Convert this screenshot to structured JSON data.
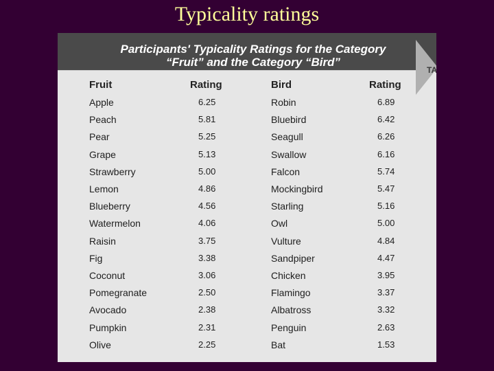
{
  "slide": {
    "title": "Typicality ratings"
  },
  "table": {
    "title_line1": "Participants' Typicality Ratings for the Category",
    "title_line2": "“Fruit” and the Category “Bird”",
    "tab_text": "TA",
    "headers": {
      "fruit": "Fruit",
      "fruit_rating": "Rating",
      "bird": "Bird",
      "bird_rating": "Rating"
    },
    "rows": [
      {
        "fruit": "Apple",
        "fruit_rating": "6.25",
        "bird": "Robin",
        "bird_rating": "6.89"
      },
      {
        "fruit": "Peach",
        "fruit_rating": "5.81",
        "bird": "Bluebird",
        "bird_rating": "6.42"
      },
      {
        "fruit": "Pear",
        "fruit_rating": "5.25",
        "bird": "Seagull",
        "bird_rating": "6.26"
      },
      {
        "fruit": "Grape",
        "fruit_rating": "5.13",
        "bird": "Swallow",
        "bird_rating": "6.16"
      },
      {
        "fruit": "Strawberry",
        "fruit_rating": "5.00",
        "bird": "Falcon",
        "bird_rating": "5.74"
      },
      {
        "fruit": "Lemon",
        "fruit_rating": "4.86",
        "bird": "Mockingbird",
        "bird_rating": "5.47"
      },
      {
        "fruit": "Blueberry",
        "fruit_rating": "4.56",
        "bird": "Starling",
        "bird_rating": "5.16"
      },
      {
        "fruit": "Watermelon",
        "fruit_rating": "4.06",
        "bird": "Owl",
        "bird_rating": "5.00"
      },
      {
        "fruit": "Raisin",
        "fruit_rating": "3.75",
        "bird": "Vulture",
        "bird_rating": "4.84"
      },
      {
        "fruit": "Fig",
        "fruit_rating": "3.38",
        "bird": "Sandpiper",
        "bird_rating": "4.47"
      },
      {
        "fruit": "Coconut",
        "fruit_rating": "3.06",
        "bird": "Chicken",
        "bird_rating": "3.95"
      },
      {
        "fruit": "Pomegranate",
        "fruit_rating": "2.50",
        "bird": "Flamingo",
        "bird_rating": "3.37"
      },
      {
        "fruit": "Avocado",
        "fruit_rating": "2.38",
        "bird": "Albatross",
        "bird_rating": "3.32"
      },
      {
        "fruit": "Pumpkin",
        "fruit_rating": "2.31",
        "bird": "Penguin",
        "bird_rating": "2.63"
      },
      {
        "fruit": "Olive",
        "fruit_rating": "2.25",
        "bird": "Bat",
        "bird_rating": "1.53"
      }
    ]
  }
}
